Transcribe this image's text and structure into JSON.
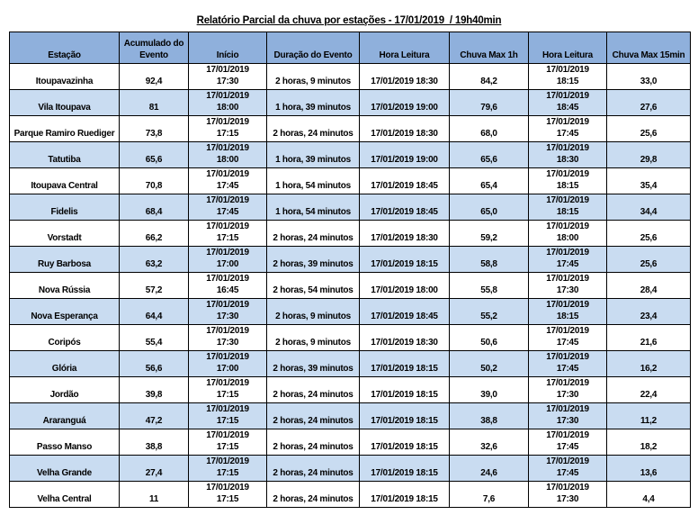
{
  "title": "Relatório Parcial da chuva por estações - 17/01/2019  / 19h40min",
  "colors": {
    "header_bg": "#8FB0DC",
    "band_bg": "#C9DCF1",
    "border": "#000000",
    "text": "#000000",
    "page_bg": "#FFFFFF"
  },
  "table": {
    "columns": [
      {
        "label": "Estação"
      },
      {
        "label": "Acumulado do Evento"
      },
      {
        "label": "Início"
      },
      {
        "label": "Duração do Evento"
      },
      {
        "label": "Hora Leitura"
      },
      {
        "label": "Chuva Max 1h"
      },
      {
        "label": "Hora Leitura"
      },
      {
        "label": "Chuva Max 15min"
      }
    ],
    "rows": [
      {
        "estacao": "Itoupavazinha",
        "acumulado": "92,4",
        "inicio": {
          "data": "17/01/2019",
          "hora": "17:30"
        },
        "duracao": "2 horas, 9 minutos",
        "hora_leitura_1h": "17/01/2019  18:30",
        "chuva_max_1h": "84,2",
        "hora_leitura_15min": {
          "data": "17/01/2019",
          "hora": "18:15"
        },
        "chuva_max_15min": "33,0"
      },
      {
        "estacao": "Vila Itoupava",
        "acumulado": "81",
        "inicio": {
          "data": "17/01/2019",
          "hora": "18:00"
        },
        "duracao": "1 hora, 39 minutos",
        "hora_leitura_1h": "17/01/2019  19:00",
        "chuva_max_1h": "79,6",
        "hora_leitura_15min": {
          "data": "17/01/2019",
          "hora": "18:45"
        },
        "chuva_max_15min": "27,6"
      },
      {
        "estacao": "Parque Ramiro Ruediger",
        "acumulado": "73,8",
        "inicio": {
          "data": "17/01/2019",
          "hora": "17:15"
        },
        "duracao": "2 horas, 24 minutos",
        "hora_leitura_1h": "17/01/2019  18:30",
        "chuva_max_1h": "68,0",
        "hora_leitura_15min": {
          "data": "17/01/2019",
          "hora": "17:45"
        },
        "chuva_max_15min": "25,6"
      },
      {
        "estacao": "Tatutiba",
        "acumulado": "65,6",
        "inicio": {
          "data": "17/01/2019",
          "hora": "18:00"
        },
        "duracao": "1 hora, 39 minutos",
        "hora_leitura_1h": "17/01/2019  19:00",
        "chuva_max_1h": "65,6",
        "hora_leitura_15min": {
          "data": "17/01/2019",
          "hora": "18:30"
        },
        "chuva_max_15min": "29,8"
      },
      {
        "estacao": "Itoupava Central",
        "acumulado": "70,8",
        "inicio": {
          "data": "17/01/2019",
          "hora": "17:45"
        },
        "duracao": "1 hora, 54 minutos",
        "hora_leitura_1h": "17/01/2019  18:45",
        "chuva_max_1h": "65,4",
        "hora_leitura_15min": {
          "data": "17/01/2019",
          "hora": "18:15"
        },
        "chuva_max_15min": "35,4"
      },
      {
        "estacao": "Fidelis",
        "acumulado": "68,4",
        "inicio": {
          "data": "17/01/2019",
          "hora": "17:45"
        },
        "duracao": "1 hora, 54 minutos",
        "hora_leitura_1h": "17/01/2019  18:45",
        "chuva_max_1h": "65,0",
        "hora_leitura_15min": {
          "data": "17/01/2019",
          "hora": "18:15"
        },
        "chuva_max_15min": "34,4"
      },
      {
        "estacao": "Vorstadt",
        "acumulado": "66,2",
        "inicio": {
          "data": "17/01/2019",
          "hora": "17:15"
        },
        "duracao": "2 horas, 24 minutos",
        "hora_leitura_1h": "17/01/2019  18:30",
        "chuva_max_1h": "59,2",
        "hora_leitura_15min": {
          "data": "17/01/2019",
          "hora": "18:00"
        },
        "chuva_max_15min": "25,6"
      },
      {
        "estacao": "Ruy Barbosa",
        "acumulado": "63,2",
        "inicio": {
          "data": "17/01/2019",
          "hora": "17:00"
        },
        "duracao": "2 horas, 39 minutos",
        "hora_leitura_1h": "17/01/2019  18:15",
        "chuva_max_1h": "58,8",
        "hora_leitura_15min": {
          "data": "17/01/2019",
          "hora": "17:45"
        },
        "chuva_max_15min": "25,6"
      },
      {
        "estacao": "Nova Rússia",
        "acumulado": "57,2",
        "inicio": {
          "data": "17/01/2019",
          "hora": "16:45"
        },
        "duracao": "2 horas, 54 minutos",
        "hora_leitura_1h": "17/01/2019  18:00",
        "chuva_max_1h": "55,8",
        "hora_leitura_15min": {
          "data": "17/01/2019",
          "hora": "17:30"
        },
        "chuva_max_15min": "28,4"
      },
      {
        "estacao": "Nova Esperança",
        "acumulado": "64,4",
        "inicio": {
          "data": "17/01/2019",
          "hora": "17:30"
        },
        "duracao": "2 horas, 9 minutos",
        "hora_leitura_1h": "17/01/2019  18:45",
        "chuva_max_1h": "55,2",
        "hora_leitura_15min": {
          "data": "17/01/2019",
          "hora": "18:15"
        },
        "chuva_max_15min": "23,4"
      },
      {
        "estacao": "Coripós",
        "acumulado": "55,4",
        "inicio": {
          "data": "17/01/2019",
          "hora": "17:30"
        },
        "duracao": "2 horas, 9 minutos",
        "hora_leitura_1h": "17/01/2019  18:30",
        "chuva_max_1h": "50,6",
        "hora_leitura_15min": {
          "data": "17/01/2019",
          "hora": "17:45"
        },
        "chuva_max_15min": "21,6"
      },
      {
        "estacao": "Glória",
        "acumulado": "56,6",
        "inicio": {
          "data": "17/01/2019",
          "hora": "17:00"
        },
        "duracao": "2 horas, 39 minutos",
        "hora_leitura_1h": "17/01/2019  18:15",
        "chuva_max_1h": "50,2",
        "hora_leitura_15min": {
          "data": "17/01/2019",
          "hora": "17:45"
        },
        "chuva_max_15min": "16,2"
      },
      {
        "estacao": "Jordão",
        "acumulado": "39,8",
        "inicio": {
          "data": "17/01/2019",
          "hora": "17:15"
        },
        "duracao": "2 horas, 24 minutos",
        "hora_leitura_1h": "17/01/2019  18:15",
        "chuva_max_1h": "39,0",
        "hora_leitura_15min": {
          "data": "17/01/2019",
          "hora": "17:30"
        },
        "chuva_max_15min": "22,4"
      },
      {
        "estacao": "Araranguá",
        "acumulado": "47,2",
        "inicio": {
          "data": "17/01/2019",
          "hora": "17:15"
        },
        "duracao": "2 horas, 24 minutos",
        "hora_leitura_1h": "17/01/2019  18:15",
        "chuva_max_1h": "38,8",
        "hora_leitura_15min": {
          "data": "17/01/2019",
          "hora": "17:30"
        },
        "chuva_max_15min": "11,2"
      },
      {
        "estacao": "Passo Manso",
        "acumulado": "38,8",
        "inicio": {
          "data": "17/01/2019",
          "hora": "17:15"
        },
        "duracao": "2 horas, 24 minutos",
        "hora_leitura_1h": "17/01/2019  18:15",
        "chuva_max_1h": "32,6",
        "hora_leitura_15min": {
          "data": "17/01/2019",
          "hora": "17:45"
        },
        "chuva_max_15min": "18,2"
      },
      {
        "estacao": "Velha Grande",
        "acumulado": "27,4",
        "inicio": {
          "data": "17/01/2019",
          "hora": "17:15"
        },
        "duracao": "2 horas, 24 minutos",
        "hora_leitura_1h": "17/01/2019  18:15",
        "chuva_max_1h": "24,6",
        "hora_leitura_15min": {
          "data": "17/01/2019",
          "hora": "17:45"
        },
        "chuva_max_15min": "13,6"
      },
      {
        "estacao": "Velha Central",
        "acumulado": "11",
        "inicio": {
          "data": "17/01/2019",
          "hora": "17:15"
        },
        "duracao": "2 horas, 24 minutos",
        "hora_leitura_1h": "17/01/2019  18:15",
        "chuva_max_1h": "7,6",
        "hora_leitura_15min": {
          "data": "17/01/2019",
          "hora": "17:30"
        },
        "chuva_max_15min": "4,4"
      }
    ]
  }
}
